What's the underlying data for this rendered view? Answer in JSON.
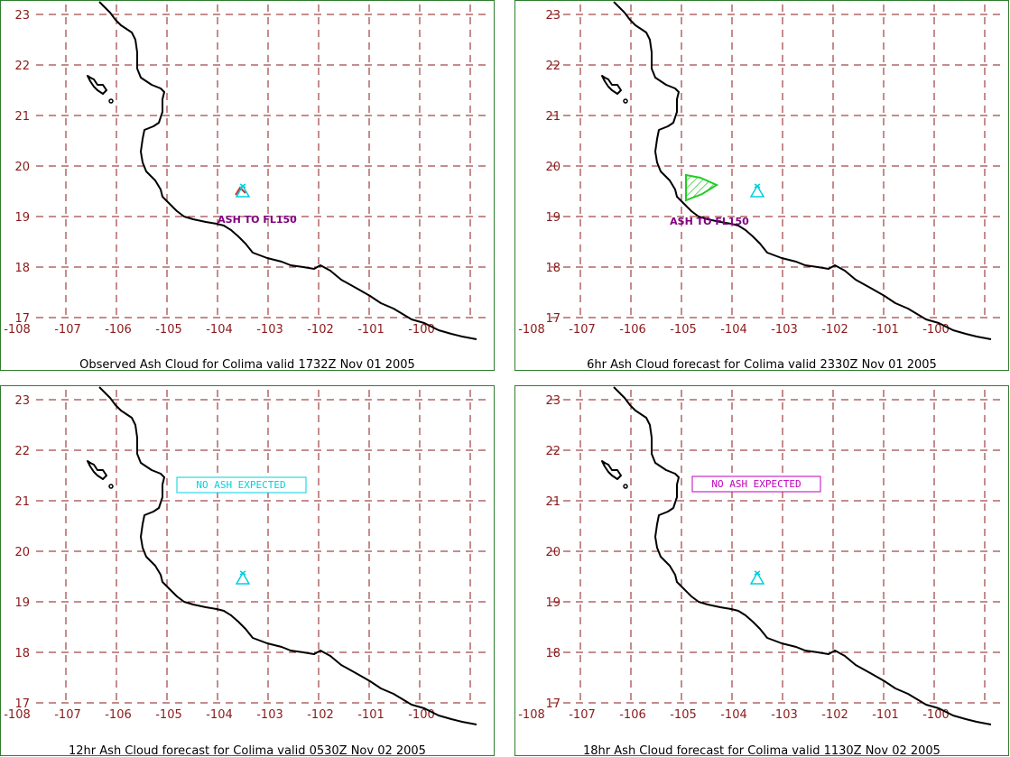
{
  "lon_ticks": [
    "-108",
    "-107",
    "-106",
    "-105",
    "-104",
    "-103",
    "-102",
    "-101",
    "-100"
  ],
  "lat_ticks": [
    "17",
    "18",
    "19",
    "20",
    "21",
    "22",
    "23"
  ],
  "colors": {
    "grid": "#8b1a1a",
    "coast": "#000000",
    "volcano": "#00cfe0",
    "obs_ash": "#c0392b",
    "fc_ash": "#22cc22",
    "flight_level_label": "#800080",
    "no_ash_cyan": "#00cfe0",
    "no_ash_magenta": "#c000c0",
    "frame": "#2e7d2e"
  },
  "volcano": {
    "name": "Colima",
    "lon": -103.6,
    "lat": 19.5,
    "icon": "volcano-triangle-icon"
  },
  "panels": [
    {
      "caption": "Observed Ash Cloud for Colima valid 1732Z Nov 01 2005",
      "label": "ASH TO FL150",
      "no_ash": ""
    },
    {
      "caption": "6hr Ash Cloud forecast for Colima valid 2330Z Nov 01 2005",
      "label": "ASH TO FL150",
      "no_ash": ""
    },
    {
      "caption": "12hr Ash Cloud forecast for Colima valid 0530Z Nov 02 2005",
      "label": "",
      "no_ash": "NO ASH EXPECTED"
    },
    {
      "caption": "18hr Ash Cloud forecast for Colima valid 1130Z Nov 02 2005",
      "label": "",
      "no_ash": "NO ASH EXPECTED"
    }
  ]
}
